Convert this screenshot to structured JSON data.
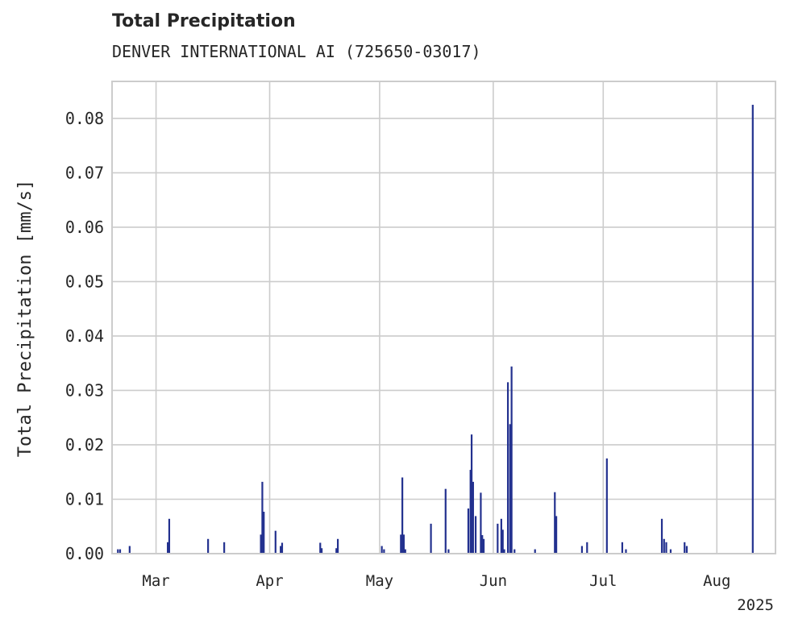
{
  "chart_data": {
    "type": "bar",
    "title": "Total Precipitation",
    "subtitle": "DENVER INTERNATIONAL AI (725650-03017)",
    "xlabel": "",
    "ylabel": "Total Precipitation [mm/s]",
    "ylim": [
      0,
      0.0868
    ],
    "xlim_days": [
      0,
      90.5
    ],
    "grid": true,
    "color": "#23318f",
    "x_ticks": [
      {
        "label": "Mar",
        "day": 6
      },
      {
        "label": "Apr",
        "day": 21.5
      },
      {
        "label": "May",
        "day": 36.5
      },
      {
        "label": "Jun",
        "day": 52
      },
      {
        "label": "Jul",
        "day": 67
      },
      {
        "label": "Aug",
        "day": 82.5
      }
    ],
    "x_offset_label": "2025",
    "y_ticks": [
      "0.00",
      "0.01",
      "0.02",
      "0.03",
      "0.04",
      "0.05",
      "0.06",
      "0.07",
      "0.08"
    ],
    "y_tick_values": [
      0,
      0.01,
      0.02,
      0.03,
      0.04,
      0.05,
      0.06,
      0.07,
      0.08
    ],
    "series": [
      {
        "name": "Total Precipitation",
        "bar_width_days": 0.22,
        "points": [
          {
            "x": 0.8,
            "y": 0.0008
          },
          {
            "x": 1.1,
            "y": 0.0008
          },
          {
            "x": 2.4,
            "y": 0.0014
          },
          {
            "x": 7.6,
            "y": 0.0021
          },
          {
            "x": 7.8,
            "y": 0.0064
          },
          {
            "x": 13.1,
            "y": 0.0027
          },
          {
            "x": 15.3,
            "y": 0.0021
          },
          {
            "x": 20.3,
            "y": 0.0035
          },
          {
            "x": 20.5,
            "y": 0.0132
          },
          {
            "x": 20.7,
            "y": 0.0077
          },
          {
            "x": 22.3,
            "y": 0.0042
          },
          {
            "x": 23.0,
            "y": 0.0014
          },
          {
            "x": 23.2,
            "y": 0.002
          },
          {
            "x": 28.4,
            "y": 0.002
          },
          {
            "x": 28.6,
            "y": 0.001
          },
          {
            "x": 30.6,
            "y": 0.001
          },
          {
            "x": 30.8,
            "y": 0.0027
          },
          {
            "x": 36.8,
            "y": 0.0014
          },
          {
            "x": 37.1,
            "y": 0.0008
          },
          {
            "x": 39.4,
            "y": 0.0035
          },
          {
            "x": 39.6,
            "y": 0.014
          },
          {
            "x": 39.8,
            "y": 0.0035
          },
          {
            "x": 40.0,
            "y": 0.0008
          },
          {
            "x": 43.5,
            "y": 0.0055
          },
          {
            "x": 45.5,
            "y": 0.0119
          },
          {
            "x": 45.9,
            "y": 0.0008
          },
          {
            "x": 48.6,
            "y": 0.0083
          },
          {
            "x": 48.9,
            "y": 0.0154
          },
          {
            "x": 49.05,
            "y": 0.0219
          },
          {
            "x": 49.25,
            "y": 0.0132
          },
          {
            "x": 49.6,
            "y": 0.0069
          },
          {
            "x": 50.3,
            "y": 0.0112
          },
          {
            "x": 50.5,
            "y": 0.0034
          },
          {
            "x": 50.7,
            "y": 0.0027
          },
          {
            "x": 52.6,
            "y": 0.0055
          },
          {
            "x": 53.1,
            "y": 0.0064
          },
          {
            "x": 53.3,
            "y": 0.0044
          },
          {
            "x": 53.5,
            "y": 0.0008
          },
          {
            "x": 54.0,
            "y": 0.0315
          },
          {
            "x": 54.3,
            "y": 0.0238
          },
          {
            "x": 54.5,
            "y": 0.0344
          },
          {
            "x": 54.9,
            "y": 0.0008
          },
          {
            "x": 57.7,
            "y": 0.0008
          },
          {
            "x": 60.4,
            "y": 0.0113
          },
          {
            "x": 60.6,
            "y": 0.0069
          },
          {
            "x": 64.1,
            "y": 0.0014
          },
          {
            "x": 64.8,
            "y": 0.0021
          },
          {
            "x": 67.5,
            "y": 0.0175
          },
          {
            "x": 69.6,
            "y": 0.0021
          },
          {
            "x": 70.1,
            "y": 0.0008
          },
          {
            "x": 75.0,
            "y": 0.0064
          },
          {
            "x": 75.3,
            "y": 0.0027
          },
          {
            "x": 75.6,
            "y": 0.0021
          },
          {
            "x": 76.2,
            "y": 0.0008
          },
          {
            "x": 78.1,
            "y": 0.0021
          },
          {
            "x": 78.4,
            "y": 0.0014
          },
          {
            "x": 87.4,
            "y": 0.0825
          }
        ]
      }
    ]
  }
}
